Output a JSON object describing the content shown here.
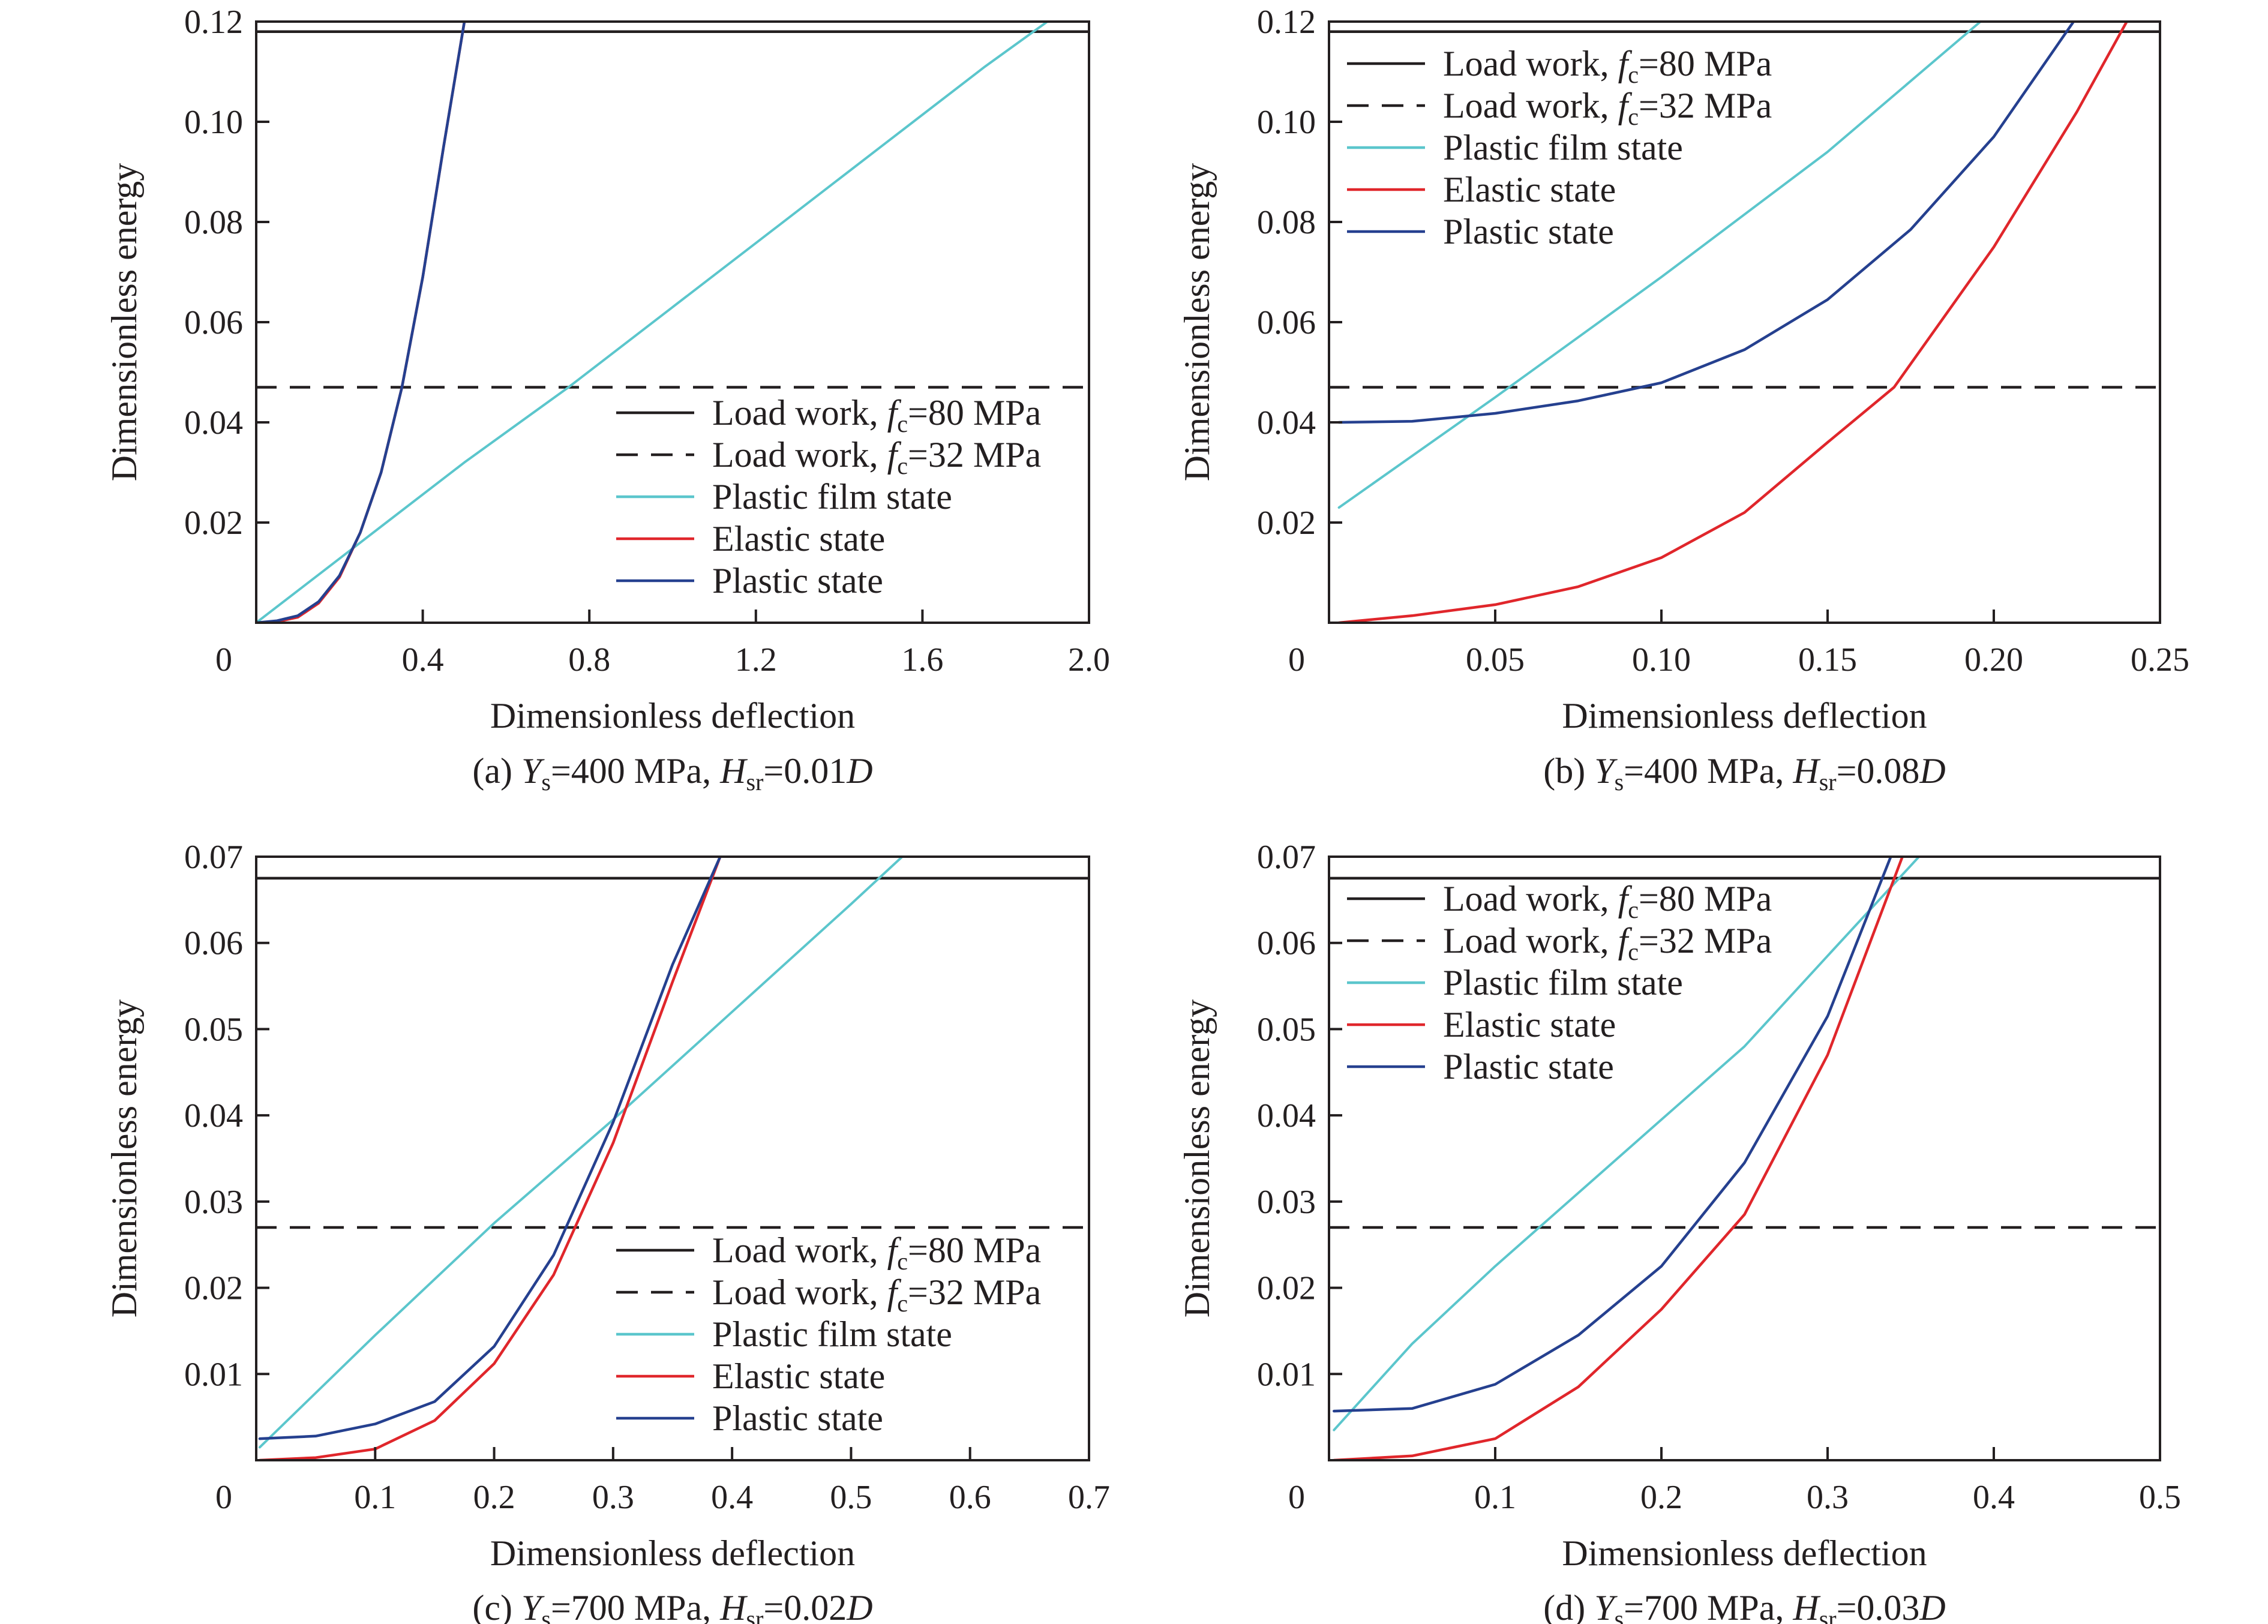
{
  "figure": {
    "colors": {
      "load80": "#231f20",
      "load32": "#231f20",
      "film": "#5bc6cc",
      "elastic": "#e0262b",
      "plastic": "#25408f"
    },
    "legend_labels": {
      "load80": {
        "pre": "Load work, ",
        "f": "f",
        "sub": "c",
        "post": "=80 MPa"
      },
      "load32": {
        "pre": "Load work, ",
        "f": "f",
        "sub": "c",
        "post": "=32 MPa"
      },
      "film": "Plastic film state",
      "elastic": "Elastic state",
      "plastic": "Plastic state"
    }
  },
  "chart_data": [
    {
      "id": "a",
      "type": "line",
      "xlabel": "Dimensionless deflection",
      "ylabel": "Dimensionless energy",
      "caption": {
        "prefix": "(a) ",
        "Y": "Y",
        "Ysub": "s",
        "mid": "=400 MPa, ",
        "H": "H",
        "Hsub": "sr",
        "post": "=0.01",
        "D": "D"
      },
      "xlim": [
        0,
        2.0
      ],
      "ylim": [
        0,
        0.12
      ],
      "xticks": [
        0.4,
        0.8,
        1.2,
        1.6,
        2.0
      ],
      "xtick_labels": [
        "0.4",
        "0.8",
        "1.2",
        "1.6",
        "2.0"
      ],
      "yticks": [
        0.02,
        0.04,
        0.06,
        0.08,
        0.1,
        0.12
      ],
      "ytick_labels": [
        "0.02",
        "0.04",
        "0.06",
        "0.08",
        "0.10",
        "0.12"
      ],
      "origin_label": "0",
      "legend_position": "bottom-right",
      "series": [
        {
          "key": "load80",
          "style": "solid",
          "x": [
            0,
            2.0
          ],
          "y": [
            0.118,
            0.118
          ]
        },
        {
          "key": "load32",
          "style": "dashed",
          "x": [
            0,
            2.0
          ],
          "y": [
            0.047,
            0.047
          ]
        },
        {
          "key": "film",
          "style": "solid",
          "x": [
            0,
            0.25,
            0.5,
            0.75,
            1.0,
            1.25,
            1.5,
            1.75,
            1.9
          ],
          "y": [
            0.0,
            0.016,
            0.032,
            0.047,
            0.063,
            0.079,
            0.095,
            0.111,
            0.12
          ]
        },
        {
          "key": "elastic",
          "style": "solid",
          "x": [
            0,
            0.05,
            0.1,
            0.15,
            0.2,
            0.25,
            0.3,
            0.35,
            0.4,
            0.45,
            0.5
          ],
          "y": [
            0.0,
            0.0002,
            0.0011,
            0.0039,
            0.0091,
            0.018,
            0.03,
            0.047,
            0.069,
            0.095,
            0.12
          ]
        },
        {
          "key": "plastic",
          "style": "solid",
          "x": [
            0,
            0.05,
            0.1,
            0.15,
            0.2,
            0.25,
            0.3,
            0.35,
            0.4,
            0.45,
            0.5
          ],
          "y": [
            0.0,
            0.0004,
            0.0014,
            0.0042,
            0.0094,
            0.018,
            0.03,
            0.047,
            0.069,
            0.095,
            0.12
          ]
        }
      ]
    },
    {
      "id": "b",
      "type": "line",
      "xlabel": "Dimensionless deflection",
      "ylabel": "Dimensionless energy",
      "caption": {
        "prefix": "(b) ",
        "Y": "Y",
        "Ysub": "s",
        "mid": "=400 MPa, ",
        "H": "H",
        "Hsub": "sr",
        "post": "=0.08",
        "D": "D"
      },
      "xlim": [
        0,
        0.25
      ],
      "ylim": [
        0,
        0.12
      ],
      "xticks": [
        0.05,
        0.1,
        0.15,
        0.2,
        0.25
      ],
      "xtick_labels": [
        "0.05",
        "0.10",
        "0.15",
        "0.20",
        "0.25"
      ],
      "yticks": [
        0.02,
        0.04,
        0.06,
        0.08,
        0.1,
        0.12
      ],
      "ytick_labels": [
        "0.02",
        "0.04",
        "0.06",
        "0.08",
        "0.10",
        "0.12"
      ],
      "origin_label": "0",
      "legend_position": "top-left",
      "series": [
        {
          "key": "load80",
          "style": "solid",
          "x": [
            0,
            0.25
          ],
          "y": [
            0.118,
            0.118
          ]
        },
        {
          "key": "load32",
          "style": "dashed",
          "x": [
            0,
            0.25
          ],
          "y": [
            0.047,
            0.047
          ]
        },
        {
          "key": "film",
          "style": "solid",
          "x": [
            0.003,
            0.05,
            0.1,
            0.15,
            0.196
          ],
          "y": [
            0.023,
            0.045,
            0.069,
            0.094,
            0.12
          ]
        },
        {
          "key": "elastic",
          "style": "solid",
          "x": [
            0.003,
            0.025,
            0.05,
            0.075,
            0.1,
            0.125,
            0.15,
            0.17,
            0.2,
            0.225,
            0.24
          ],
          "y": [
            0.0,
            0.0014,
            0.0036,
            0.0072,
            0.013,
            0.022,
            0.036,
            0.047,
            0.075,
            0.102,
            0.12
          ]
        },
        {
          "key": "plastic",
          "style": "solid",
          "x": [
            0.003,
            0.025,
            0.05,
            0.075,
            0.1,
            0.125,
            0.15,
            0.175,
            0.2,
            0.224
          ],
          "y": [
            0.04,
            0.0402,
            0.0418,
            0.0443,
            0.0479,
            0.0545,
            0.0645,
            0.0785,
            0.097,
            0.12
          ]
        }
      ]
    },
    {
      "id": "c",
      "type": "line",
      "xlabel": "Dimensionless deflection",
      "ylabel": "Dimensionless energy",
      "caption": {
        "prefix": "(c) ",
        "Y": "Y",
        "Ysub": "s",
        "mid": "=700 MPa, ",
        "H": "H",
        "Hsub": "sr",
        "post": "=0.02",
        "D": "D"
      },
      "xlim": [
        0,
        0.7
      ],
      "ylim": [
        0,
        0.07
      ],
      "xticks": [
        0.1,
        0.2,
        0.3,
        0.4,
        0.5,
        0.6,
        0.7
      ],
      "xtick_labels": [
        "0.1",
        "0.2",
        "0.3",
        "0.4",
        "0.5",
        "0.6",
        "0.7"
      ],
      "yticks": [
        0.01,
        0.02,
        0.03,
        0.04,
        0.05,
        0.06,
        0.07
      ],
      "ytick_labels": [
        "0.01",
        "0.02",
        "0.03",
        "0.04",
        "0.05",
        "0.06",
        "0.07"
      ],
      "origin_label": "0",
      "legend_position": "bottom-right",
      "series": [
        {
          "key": "load80",
          "style": "solid",
          "x": [
            0,
            0.7
          ],
          "y": [
            0.0675,
            0.0675
          ]
        },
        {
          "key": "load32",
          "style": "dashed",
          "x": [
            0,
            0.7
          ],
          "y": [
            0.027,
            0.027
          ]
        },
        {
          "key": "film",
          "style": "solid",
          "x": [
            0.003,
            0.1,
            0.2,
            0.3,
            0.4,
            0.5,
            0.543
          ],
          "y": [
            0.0015,
            0.0145,
            0.0275,
            0.0395,
            0.052,
            0.0645,
            0.07
          ]
        },
        {
          "key": "elastic",
          "style": "solid",
          "x": [
            0.003,
            0.05,
            0.1,
            0.15,
            0.2,
            0.25,
            0.3,
            0.35,
            0.39
          ],
          "y": [
            0.0,
            0.0003,
            0.0013,
            0.0046,
            0.0112,
            0.0215,
            0.0368,
            0.0555,
            0.07
          ]
        },
        {
          "key": "plastic",
          "style": "solid",
          "x": [
            0.003,
            0.05,
            0.1,
            0.15,
            0.2,
            0.25,
            0.3,
            0.35,
            0.39
          ],
          "y": [
            0.0025,
            0.0028,
            0.0042,
            0.0068,
            0.0132,
            0.0238,
            0.0392,
            0.0575,
            0.07
          ]
        }
      ]
    },
    {
      "id": "d",
      "type": "line",
      "xlabel": "Dimensionless deflection",
      "ylabel": "Dimensionless energy",
      "caption": {
        "prefix": "(d) ",
        "Y": "Y",
        "Ysub": "s",
        "mid": "=700 MPa, ",
        "H": "H",
        "Hsub": "sr",
        "post": "=0.03",
        "D": "D"
      },
      "xlim": [
        0,
        0.5
      ],
      "ylim": [
        0,
        0.07
      ],
      "xticks": [
        0.1,
        0.2,
        0.3,
        0.4,
        0.5
      ],
      "xtick_labels": [
        "0.1",
        "0.2",
        "0.3",
        "0.4",
        "0.5"
      ],
      "yticks": [
        0.01,
        0.02,
        0.03,
        0.04,
        0.05,
        0.06,
        0.07
      ],
      "ytick_labels": [
        "0.01",
        "0.02",
        "0.03",
        "0.04",
        "0.05",
        "0.06",
        "0.07"
      ],
      "origin_label": "0",
      "legend_position": "top-left",
      "series": [
        {
          "key": "load80",
          "style": "solid",
          "x": [
            0,
            0.5
          ],
          "y": [
            0.0675,
            0.0675
          ]
        },
        {
          "key": "load32",
          "style": "dashed",
          "x": [
            0,
            0.5
          ],
          "y": [
            0.027,
            0.027
          ]
        },
        {
          "key": "film",
          "style": "solid",
          "x": [
            0.003,
            0.05,
            0.1,
            0.15,
            0.2,
            0.25,
            0.3,
            0.355
          ],
          "y": [
            0.0035,
            0.0135,
            0.0225,
            0.031,
            0.0395,
            0.048,
            0.0585,
            0.07
          ]
        },
        {
          "key": "elastic",
          "style": "solid",
          "x": [
            0.003,
            0.05,
            0.1,
            0.15,
            0.2,
            0.25,
            0.3,
            0.345
          ],
          "y": [
            0.0,
            0.0005,
            0.0025,
            0.0085,
            0.0175,
            0.0285,
            0.047,
            0.07
          ]
        },
        {
          "key": "plastic",
          "style": "solid",
          "x": [
            0.003,
            0.05,
            0.1,
            0.15,
            0.2,
            0.25,
            0.3,
            0.338
          ],
          "y": [
            0.0057,
            0.006,
            0.0088,
            0.0145,
            0.0225,
            0.0345,
            0.0515,
            0.07
          ]
        }
      ]
    }
  ]
}
